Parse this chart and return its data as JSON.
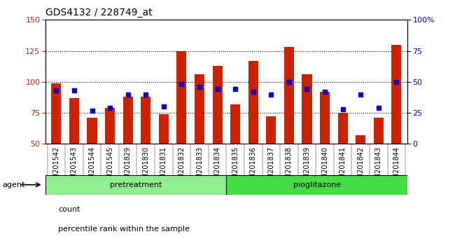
{
  "title": "GDS4132 / 228749_at",
  "categories": [
    "GSM201542",
    "GSM201543",
    "GSM201544",
    "GSM201545",
    "GSM201829",
    "GSM201830",
    "GSM201831",
    "GSM201832",
    "GSM201833",
    "GSM201834",
    "GSM201835",
    "GSM201836",
    "GSM201837",
    "GSM201838",
    "GSM201839",
    "GSM201840",
    "GSM201841",
    "GSM201842",
    "GSM201843",
    "GSM201844"
  ],
  "counts": [
    99,
    87,
    71,
    79,
    88,
    88,
    74,
    125,
    106,
    113,
    82,
    117,
    72,
    128,
    106,
    92,
    75,
    57,
    71,
    130
  ],
  "percentiles": [
    43,
    43,
    27,
    29,
    40,
    40,
    30,
    48,
    46,
    44,
    44,
    42,
    40,
    50,
    44,
    42,
    28,
    40,
    29,
    50
  ],
  "groups": [
    {
      "label": "pretreatment",
      "start": 0,
      "end": 10,
      "color": "#90ee90"
    },
    {
      "label": "pioglitazone",
      "start": 10,
      "end": 20,
      "color": "#44dd44"
    }
  ],
  "bar_color": "#cc2200",
  "dot_color": "#0000cc",
  "ylim_left": [
    50,
    150
  ],
  "ylim_right": [
    0,
    100
  ],
  "yticks_left": [
    50,
    75,
    100,
    125,
    150
  ],
  "yticks_right": [
    0,
    25,
    50,
    75,
    100
  ],
  "bar_width": 0.55,
  "agent_label": "agent",
  "title_fontsize": 10,
  "tick_fontsize": 7,
  "legend_fontsize": 8,
  "group_fontsize": 8,
  "agent_fontsize": 8
}
